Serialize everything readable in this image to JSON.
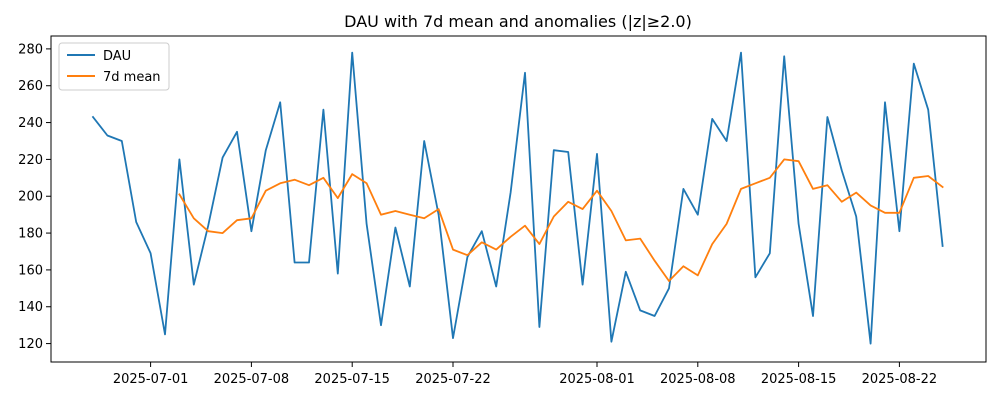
{
  "chart_data": {
    "type": "line",
    "title": "DAU with 7d mean and anomalies (|z|≥2.0)",
    "xlabel": "",
    "ylabel": "",
    "ylim": [
      110,
      287
    ],
    "x_start": "2025-06-27",
    "x_tick_labels": [
      "2025-07-01",
      "2025-07-08",
      "2025-07-15",
      "2025-07-22",
      "2025-08-01",
      "2025-08-08",
      "2025-08-15",
      "2025-08-22"
    ],
    "x_tick_day_index": [
      4,
      11,
      18,
      25,
      35,
      42,
      49,
      56
    ],
    "y_ticks": [
      120,
      140,
      160,
      180,
      200,
      220,
      240,
      260,
      280
    ],
    "grid": false,
    "legend_position": "top-left",
    "series": [
      {
        "name": "DAU",
        "color": "#1f77b4",
        "start_day_index": 0,
        "values": [
          243,
          233,
          230,
          186,
          169,
          125,
          220,
          152,
          184,
          221,
          235,
          181,
          225,
          251,
          164,
          164,
          247,
          158,
          278,
          185,
          130,
          183,
          151,
          230,
          190,
          123,
          167,
          181,
          151,
          202,
          267,
          129,
          225,
          224,
          152,
          223,
          121,
          159,
          138,
          135,
          150,
          204,
          190,
          242,
          230,
          278,
          156,
          169,
          276,
          185,
          135,
          243,
          214,
          189,
          120,
          251,
          181,
          272,
          247,
          173
        ]
      },
      {
        "name": "7d mean",
        "color": "#ff7f0e",
        "start_day_index": 6,
        "values": [
          201,
          188,
          181,
          180,
          187,
          188,
          203,
          207,
          209,
          206,
          210,
          199,
          212,
          207,
          190,
          192,
          190,
          188,
          193,
          171,
          168,
          175,
          171,
          178,
          184,
          174,
          189,
          197,
          193,
          203,
          192,
          176,
          177,
          165,
          154,
          162,
          157,
          174,
          185,
          204,
          207,
          210,
          220,
          219,
          204,
          206,
          197,
          202,
          195,
          191,
          191,
          210,
          211,
          205
        ]
      }
    ]
  }
}
